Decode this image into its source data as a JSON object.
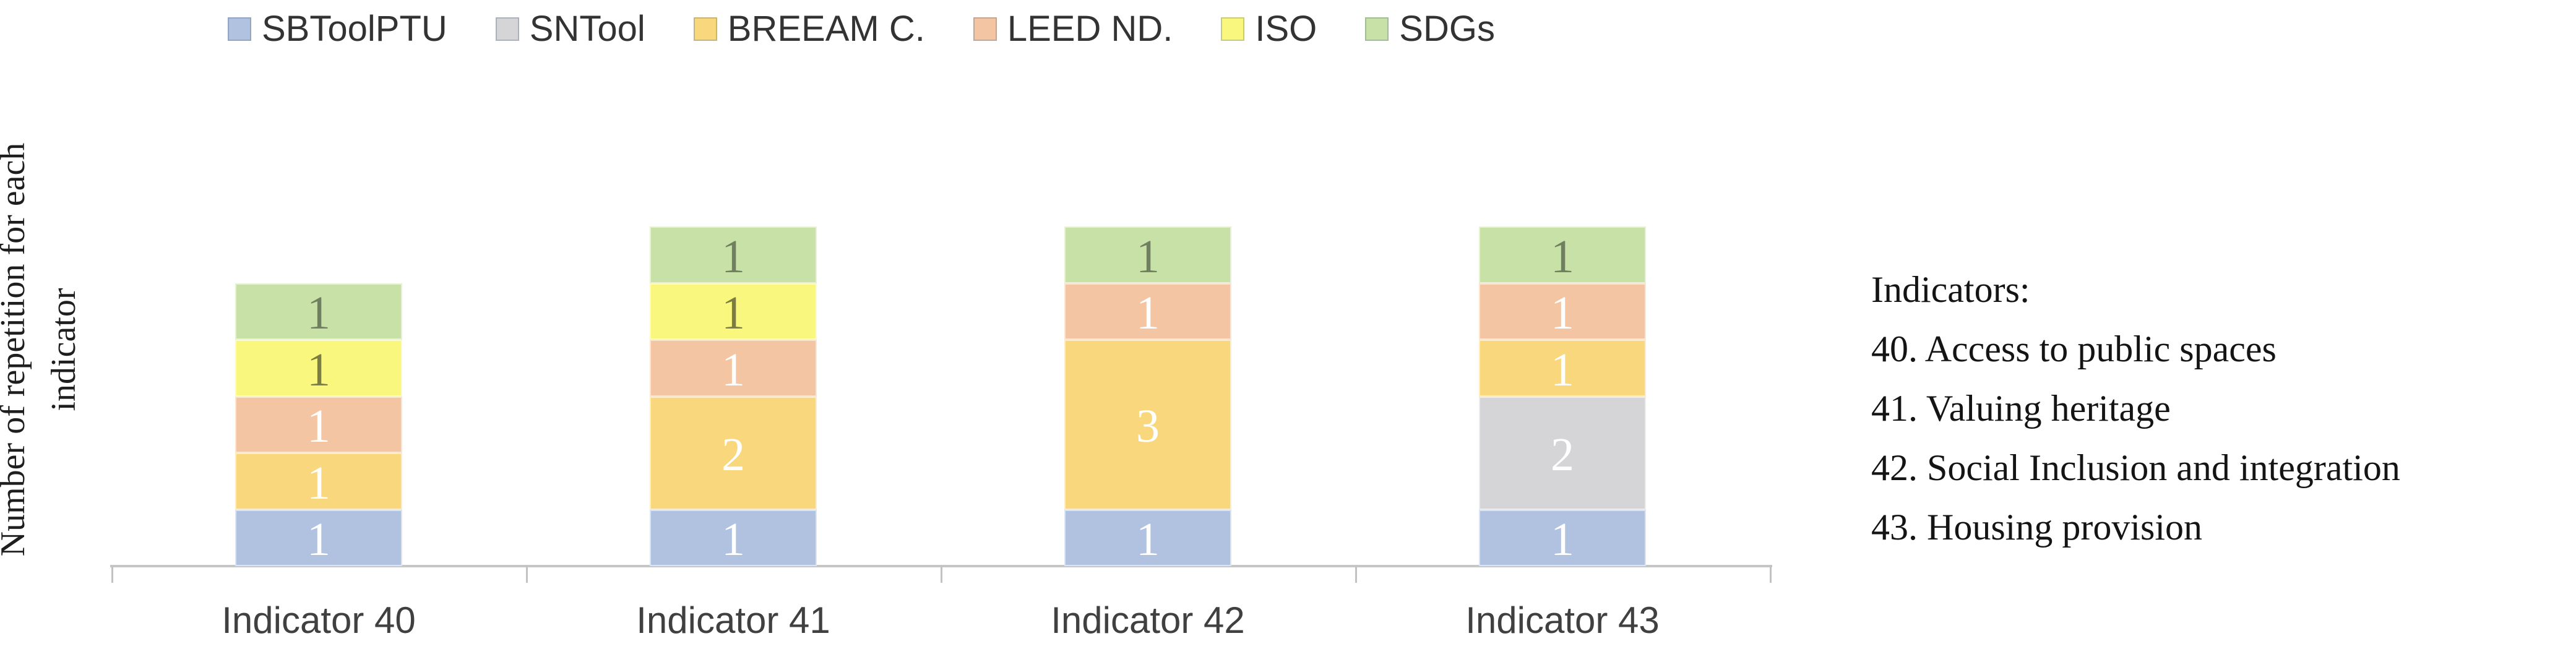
{
  "chart_data": {
    "type": "bar",
    "stacked": true,
    "title": "",
    "ylabel": "Number of repetition for each indicator",
    "xlabel": "",
    "categories": [
      "Indicator 40",
      "Indicator 41",
      "Indicator 42",
      "Indicator 43"
    ],
    "series": [
      {
        "name": "SBToolPTU",
        "color": "#B1C2E1",
        "label_color": "#FFFFFF",
        "values": [
          1,
          1,
          1,
          1
        ]
      },
      {
        "name": "SNTool",
        "color": "#D5D5D7",
        "label_color": "#FFFFFF",
        "values": [
          0,
          0,
          0,
          2
        ]
      },
      {
        "name": "BREEAM C.",
        "color": "#F9D77D",
        "label_color": "#FFFFFF",
        "values": [
          1,
          2,
          3,
          1
        ]
      },
      {
        "name": "LEED ND.",
        "color": "#F3C5A2",
        "label_color": "#FFFFFF",
        "values": [
          1,
          1,
          1,
          1
        ]
      },
      {
        "name": "ISO",
        "color": "#FAF77E",
        "label_color": "#7C7D40",
        "values": [
          1,
          1,
          0,
          0
        ]
      },
      {
        "name": "SDGs",
        "color": "#C8E1A6",
        "label_color": "#6F7F60",
        "values": [
          1,
          1,
          1,
          1
        ]
      }
    ],
    "ylim": [
      0,
      6
    ],
    "grid": false,
    "legend_position": "top",
    "bar_value_labels_shown": true,
    "axis_color": "#C6C6C6"
  },
  "note": {
    "title": "Indicators:",
    "items": [
      "40. Access to public spaces",
      "41. Valuing heritage",
      "42. Social Inclusion and integration",
      "43. Housing provision"
    ]
  }
}
